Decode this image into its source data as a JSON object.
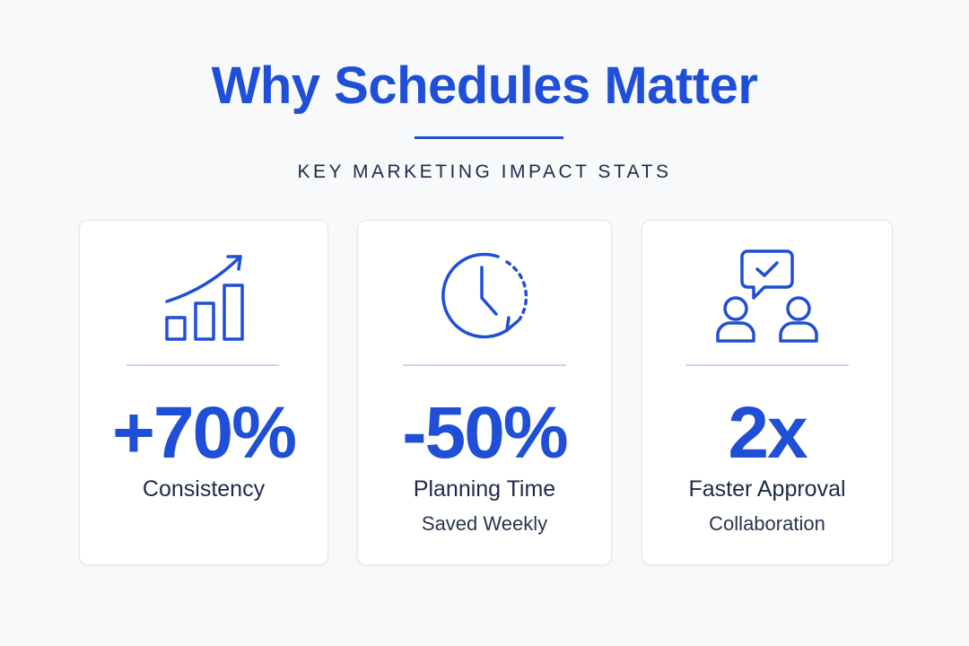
{
  "header": {
    "title": "Why Schedules Matter",
    "subtitle": "KEY MARKETING IMPACT STATS"
  },
  "cards": [
    {
      "stat": "+70%",
      "label": "Consistency"
    },
    {
      "stat": "-50%",
      "label": "Planning Time",
      "sublabel": "Saved Weekly"
    },
    {
      "stat": "2x",
      "label": "Faster Approval",
      "sublabel": "Collaboration"
    }
  ]
}
